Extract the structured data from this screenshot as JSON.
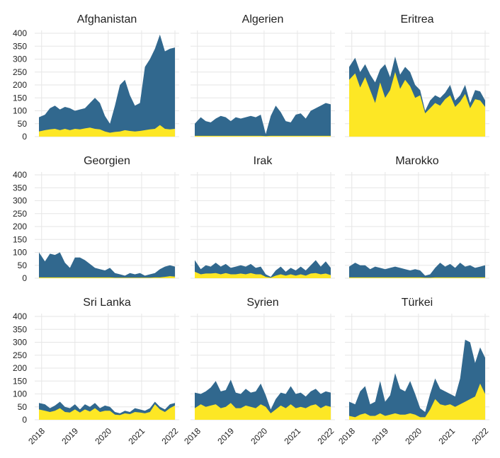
{
  "chart_data": {
    "type": "area",
    "layout": "3x3 small multiples, stacked areas, shared y axis",
    "ylim": [
      0,
      400
    ],
    "y_ticks": [
      0,
      50,
      100,
      150,
      200,
      250,
      300,
      350,
      400
    ],
    "x_tick_labels": [
      "2018",
      "2019",
      "2020",
      "2021",
      "2022"
    ],
    "x_tick_values": [
      2018,
      2019,
      2020,
      2021,
      2022
    ],
    "x_range": [
      2017.92,
      2022.0
    ],
    "xlabel": "",
    "ylabel": "",
    "grid": true,
    "legend": "none",
    "colors": {
      "top": "#31688e",
      "bottom": "#fde725",
      "grid": "#e6e6e6",
      "text": "#222222"
    },
    "panels": [
      {
        "title": "Afghanistan",
        "x": [
          2017.92,
          2018.1,
          2018.25,
          2018.4,
          2018.55,
          2018.7,
          2018.85,
          2019.0,
          2019.15,
          2019.3,
          2019.45,
          2019.6,
          2019.75,
          2019.9,
          2020.05,
          2020.2,
          2020.35,
          2020.5,
          2020.65,
          2020.8,
          2020.95,
          2021.1,
          2021.25,
          2021.4,
          2021.55,
          2021.7,
          2021.85,
          2022.0
        ],
        "total": [
          75,
          85,
          110,
          120,
          105,
          115,
          110,
          100,
          105,
          110,
          130,
          150,
          130,
          80,
          50,
          120,
          200,
          220,
          160,
          120,
          130,
          270,
          300,
          340,
          395,
          330,
          340,
          345
        ],
        "bottom": [
          20,
          25,
          28,
          30,
          25,
          30,
          25,
          30,
          28,
          32,
          35,
          30,
          28,
          20,
          15,
          18,
          20,
          25,
          22,
          20,
          22,
          25,
          28,
          30,
          45,
          30,
          28,
          30
        ]
      },
      {
        "title": "Algerien",
        "x": [
          2017.92,
          2018.1,
          2018.25,
          2018.4,
          2018.55,
          2018.7,
          2018.85,
          2019.0,
          2019.15,
          2019.3,
          2019.45,
          2019.6,
          2019.75,
          2019.9,
          2020.05,
          2020.2,
          2020.35,
          2020.5,
          2020.65,
          2020.8,
          2020.95,
          2021.1,
          2021.25,
          2021.4,
          2021.55,
          2021.7,
          2021.85,
          2022.0
        ],
        "total": [
          50,
          75,
          60,
          55,
          70,
          80,
          75,
          60,
          75,
          70,
          75,
          80,
          75,
          85,
          10,
          80,
          120,
          95,
          60,
          55,
          85,
          90,
          70,
          100,
          110,
          120,
          130,
          125
        ],
        "bottom": [
          3,
          3,
          3,
          3,
          3,
          3,
          3,
          3,
          3,
          3,
          3,
          3,
          3,
          3,
          2,
          3,
          3,
          3,
          3,
          3,
          3,
          3,
          3,
          3,
          3,
          3,
          3,
          3
        ]
      },
      {
        "title": "Eritrea",
        "x": [
          2017.92,
          2018.1,
          2018.25,
          2018.4,
          2018.55,
          2018.7,
          2018.85,
          2019.0,
          2019.15,
          2019.3,
          2019.45,
          2019.6,
          2019.75,
          2019.9,
          2020.05,
          2020.2,
          2020.35,
          2020.5,
          2020.65,
          2020.8,
          2020.95,
          2021.1,
          2021.25,
          2021.4,
          2021.55,
          2021.7,
          2021.85,
          2022.0
        ],
        "total": [
          270,
          305,
          250,
          280,
          240,
          210,
          260,
          280,
          230,
          310,
          240,
          270,
          250,
          200,
          180,
          100,
          140,
          160,
          150,
          170,
          200,
          140,
          160,
          200,
          130,
          180,
          175,
          140
        ],
        "bottom": [
          220,
          245,
          190,
          230,
          180,
          130,
          210,
          150,
          180,
          250,
          185,
          220,
          195,
          150,
          160,
          90,
          110,
          130,
          120,
          145,
          160,
          115,
          135,
          165,
          110,
          145,
          140,
          115
        ]
      },
      {
        "title": "Georgien",
        "x": [
          2017.92,
          2018.1,
          2018.25,
          2018.4,
          2018.55,
          2018.7,
          2018.85,
          2019.0,
          2019.15,
          2019.3,
          2019.45,
          2019.6,
          2019.75,
          2019.9,
          2020.05,
          2020.2,
          2020.35,
          2020.5,
          2020.65,
          2020.8,
          2020.95,
          2021.1,
          2021.25,
          2021.4,
          2021.55,
          2021.7,
          2021.85,
          2022.0
        ],
        "total": [
          100,
          65,
          95,
          90,
          100,
          60,
          40,
          80,
          80,
          70,
          55,
          40,
          35,
          30,
          40,
          20,
          15,
          10,
          20,
          15,
          20,
          10,
          15,
          20,
          35,
          45,
          50,
          45
        ],
        "bottom": [
          3,
          3,
          3,
          3,
          3,
          3,
          3,
          3,
          3,
          3,
          3,
          3,
          3,
          3,
          3,
          2,
          2,
          2,
          2,
          2,
          2,
          2,
          2,
          3,
          3,
          5,
          8,
          6
        ]
      },
      {
        "title": "Irak",
        "x": [
          2017.92,
          2018.1,
          2018.25,
          2018.4,
          2018.55,
          2018.7,
          2018.85,
          2019.0,
          2019.15,
          2019.3,
          2019.45,
          2019.6,
          2019.75,
          2019.9,
          2020.05,
          2020.2,
          2020.35,
          2020.5,
          2020.65,
          2020.8,
          2020.95,
          2021.1,
          2021.25,
          2021.4,
          2021.55,
          2021.7,
          2021.85,
          2022.0
        ],
        "total": [
          70,
          35,
          50,
          45,
          60,
          45,
          55,
          40,
          45,
          50,
          45,
          55,
          40,
          45,
          15,
          5,
          30,
          45,
          25,
          40,
          30,
          45,
          30,
          50,
          70,
          45,
          65,
          40
        ],
        "bottom": [
          25,
          15,
          18,
          18,
          20,
          15,
          20,
          15,
          15,
          18,
          15,
          20,
          15,
          15,
          5,
          2,
          10,
          15,
          10,
          15,
          10,
          15,
          10,
          18,
          20,
          15,
          18,
          12
        ]
      },
      {
        "title": "Marokko",
        "x": [
          2017.92,
          2018.1,
          2018.25,
          2018.4,
          2018.55,
          2018.7,
          2018.85,
          2019.0,
          2019.15,
          2019.3,
          2019.45,
          2019.6,
          2019.75,
          2019.9,
          2020.05,
          2020.2,
          2020.35,
          2020.5,
          2020.65,
          2020.8,
          2020.95,
          2021.1,
          2021.25,
          2021.4,
          2021.55,
          2021.7,
          2021.85,
          2022.0
        ],
        "total": [
          45,
          60,
          50,
          50,
          35,
          45,
          40,
          35,
          40,
          45,
          40,
          35,
          30,
          35,
          30,
          10,
          15,
          40,
          60,
          45,
          55,
          40,
          60,
          45,
          50,
          40,
          45,
          50
        ],
        "bottom": [
          3,
          3,
          3,
          3,
          3,
          3,
          3,
          3,
          3,
          3,
          3,
          3,
          3,
          3,
          3,
          2,
          2,
          3,
          3,
          3,
          3,
          3,
          3,
          3,
          3,
          3,
          3,
          3
        ]
      },
      {
        "title": "Sri Lanka",
        "x": [
          2017.92,
          2018.1,
          2018.25,
          2018.4,
          2018.55,
          2018.7,
          2018.85,
          2019.0,
          2019.15,
          2019.3,
          2019.45,
          2019.6,
          2019.75,
          2019.9,
          2020.05,
          2020.2,
          2020.35,
          2020.5,
          2020.65,
          2020.8,
          2020.95,
          2021.1,
          2021.25,
          2021.4,
          2021.55,
          2021.7,
          2021.85,
          2022.0
        ],
        "total": [
          65,
          60,
          45,
          55,
          70,
          50,
          45,
          60,
          40,
          60,
          50,
          65,
          45,
          55,
          50,
          30,
          25,
          35,
          30,
          45,
          40,
          35,
          45,
          70,
          50,
          40,
          60,
          65
        ],
        "bottom": [
          40,
          35,
          30,
          35,
          45,
          30,
          28,
          40,
          28,
          40,
          32,
          45,
          30,
          35,
          35,
          20,
          18,
          25,
          22,
          30,
          28,
          25,
          30,
          60,
          40,
          30,
          45,
          55
        ]
      },
      {
        "title": "Syrien",
        "x": [
          2017.92,
          2018.1,
          2018.25,
          2018.4,
          2018.55,
          2018.7,
          2018.85,
          2019.0,
          2019.15,
          2019.3,
          2019.45,
          2019.6,
          2019.75,
          2019.9,
          2020.05,
          2020.2,
          2020.35,
          2020.5,
          2020.65,
          2020.8,
          2020.95,
          2021.1,
          2021.25,
          2021.4,
          2021.55,
          2021.7,
          2021.85,
          2022.0
        ],
        "total": [
          105,
          100,
          110,
          125,
          150,
          110,
          115,
          155,
          105,
          100,
          120,
          105,
          110,
          140,
          95,
          40,
          80,
          105,
          100,
          130,
          100,
          105,
          90,
          110,
          120,
          100,
          110,
          105
        ],
        "bottom": [
          45,
          60,
          50,
          55,
          60,
          45,
          50,
          65,
          45,
          45,
          55,
          50,
          45,
          60,
          50,
          25,
          40,
          55,
          45,
          60,
          45,
          50,
          45,
          55,
          60,
          45,
          55,
          50
        ]
      },
      {
        "title": "Türkei",
        "x": [
          2017.92,
          2018.1,
          2018.25,
          2018.4,
          2018.55,
          2018.7,
          2018.85,
          2019.0,
          2019.15,
          2019.3,
          2019.45,
          2019.6,
          2019.75,
          2019.9,
          2020.05,
          2020.2,
          2020.35,
          2020.5,
          2020.65,
          2020.8,
          2020.95,
          2021.1,
          2021.25,
          2021.4,
          2021.55,
          2021.7,
          2021.85,
          2022.0
        ],
        "total": [
          70,
          60,
          110,
          130,
          60,
          70,
          150,
          70,
          95,
          180,
          120,
          110,
          150,
          100,
          45,
          30,
          100,
          160,
          120,
          110,
          100,
          90,
          160,
          310,
          300,
          220,
          280,
          240
        ],
        "bottom": [
          15,
          10,
          20,
          25,
          15,
          15,
          25,
          15,
          20,
          25,
          20,
          20,
          25,
          20,
          10,
          10,
          40,
          80,
          60,
          55,
          60,
          50,
          60,
          70,
          80,
          90,
          140,
          100
        ]
      }
    ]
  }
}
